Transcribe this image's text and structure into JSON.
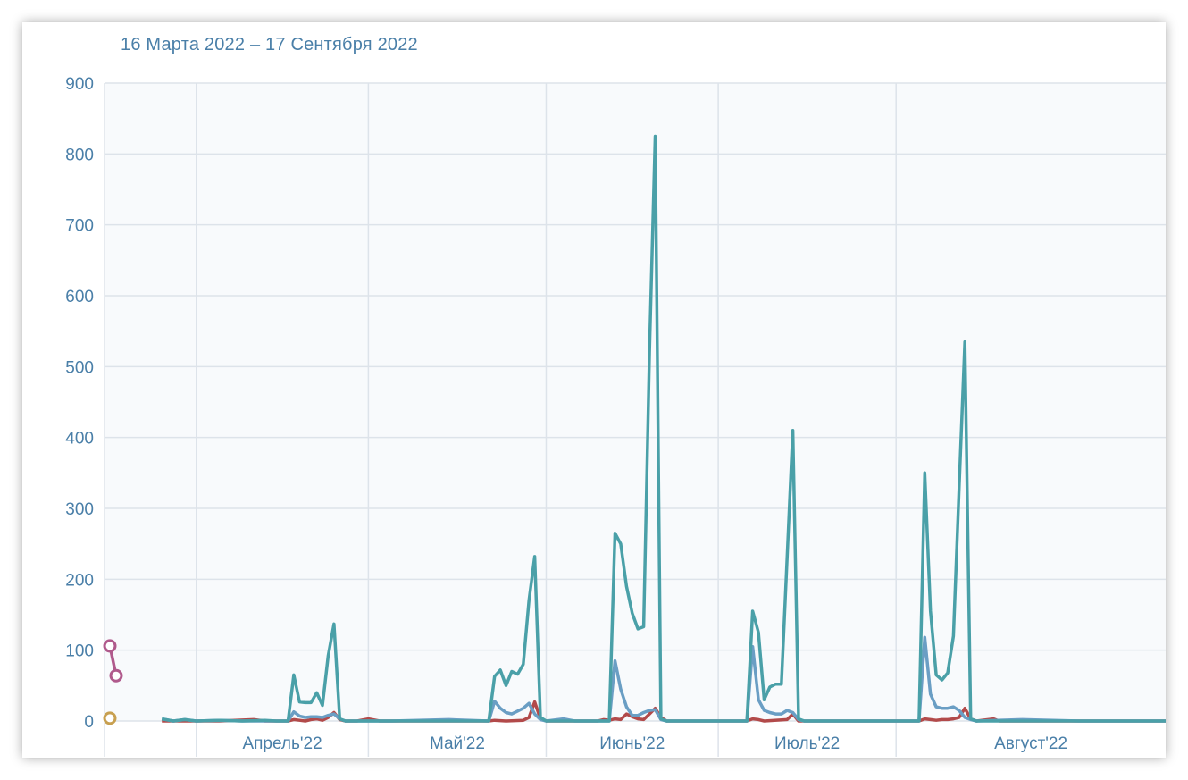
{
  "header": {
    "date_range": "16 Марта 2022 – 17 Сентября 2022"
  },
  "chart_data": {
    "type": "line",
    "title": "",
    "xlabel": "",
    "ylabel": "",
    "ylim": [
      0,
      900
    ],
    "y_ticks": [
      0,
      100,
      200,
      300,
      400,
      500,
      600,
      700,
      800,
      900
    ],
    "x_tick_labels": [
      "Апрель'22",
      "Май'22",
      "Июнь'22",
      "Июль'22",
      "Август'22"
    ],
    "x_range_days": [
      0,
      185
    ],
    "month_starts_day": [
      16,
      46,
      77,
      107,
      138
    ],
    "grid": true,
    "legend": "none",
    "series": [
      {
        "color": "#4aa0a8",
        "points": [
          [
            10,
            3
          ],
          [
            12,
            0
          ],
          [
            14,
            2
          ],
          [
            16,
            0
          ],
          [
            20,
            1
          ],
          [
            24,
            0
          ],
          [
            28,
            1
          ],
          [
            30,
            0
          ],
          [
            32,
            0
          ],
          [
            33,
            65
          ],
          [
            34,
            27
          ],
          [
            35,
            26
          ],
          [
            36,
            26
          ],
          [
            37,
            40
          ],
          [
            38,
            22
          ],
          [
            39,
            92
          ],
          [
            40,
            137
          ],
          [
            41,
            3
          ],
          [
            42,
            0
          ],
          [
            46,
            0
          ],
          [
            60,
            0
          ],
          [
            67,
            0
          ],
          [
            68,
            63
          ],
          [
            69,
            72
          ],
          [
            70,
            50
          ],
          [
            71,
            70
          ],
          [
            72,
            66
          ],
          [
            73,
            80
          ],
          [
            74,
            170
          ],
          [
            75,
            232
          ],
          [
            76,
            5
          ],
          [
            77,
            0
          ],
          [
            82,
            0
          ],
          [
            86,
            0
          ],
          [
            88,
            0
          ],
          [
            89,
            265
          ],
          [
            90,
            250
          ],
          [
            91,
            190
          ],
          [
            92,
            152
          ],
          [
            93,
            130
          ],
          [
            94,
            133
          ],
          [
            95,
            520
          ],
          [
            96,
            825
          ],
          [
            97,
            3
          ],
          [
            98,
            0
          ],
          [
            105,
            0
          ],
          [
            112,
            0
          ],
          [
            113,
            155
          ],
          [
            114,
            125
          ],
          [
            115,
            30
          ],
          [
            116,
            48
          ],
          [
            117,
            52
          ],
          [
            118,
            52
          ],
          [
            119,
            230
          ],
          [
            120,
            410
          ],
          [
            121,
            3
          ],
          [
            122,
            0
          ],
          [
            130,
            0
          ],
          [
            138,
            0
          ],
          [
            142,
            0
          ],
          [
            143,
            350
          ],
          [
            144,
            155
          ],
          [
            145,
            65
          ],
          [
            146,
            58
          ],
          [
            147,
            68
          ],
          [
            148,
            120
          ],
          [
            149,
            330
          ],
          [
            150,
            535
          ],
          [
            151,
            3
          ],
          [
            152,
            0
          ],
          [
            170,
            0
          ],
          [
            185,
            0
          ]
        ]
      },
      {
        "color": "#6a9ec4",
        "points": [
          [
            10,
            3
          ],
          [
            12,
            0
          ],
          [
            14,
            2
          ],
          [
            16,
            0
          ],
          [
            20,
            1
          ],
          [
            24,
            0
          ],
          [
            32,
            0
          ],
          [
            33,
            13
          ],
          [
            34,
            7
          ],
          [
            35,
            5
          ],
          [
            36,
            6
          ],
          [
            37,
            6
          ],
          [
            38,
            5
          ],
          [
            39,
            8
          ],
          [
            40,
            10
          ],
          [
            41,
            3
          ],
          [
            42,
            0
          ],
          [
            50,
            0
          ],
          [
            60,
            2
          ],
          [
            67,
            0
          ],
          [
            68,
            28
          ],
          [
            69,
            18
          ],
          [
            70,
            12
          ],
          [
            71,
            10
          ],
          [
            72,
            14
          ],
          [
            73,
            18
          ],
          [
            74,
            25
          ],
          [
            75,
            10
          ],
          [
            76,
            2
          ],
          [
            77,
            0
          ],
          [
            80,
            3
          ],
          [
            82,
            0
          ],
          [
            88,
            0
          ],
          [
            89,
            85
          ],
          [
            90,
            45
          ],
          [
            91,
            20
          ],
          [
            92,
            8
          ],
          [
            93,
            8
          ],
          [
            94,
            12
          ],
          [
            95,
            15
          ],
          [
            96,
            16
          ],
          [
            97,
            2
          ],
          [
            98,
            0
          ],
          [
            112,
            0
          ],
          [
            113,
            105
          ],
          [
            114,
            30
          ],
          [
            115,
            15
          ],
          [
            116,
            12
          ],
          [
            117,
            10
          ],
          [
            118,
            10
          ],
          [
            119,
            15
          ],
          [
            120,
            12
          ],
          [
            121,
            2
          ],
          [
            122,
            0
          ],
          [
            138,
            0
          ],
          [
            142,
            0
          ],
          [
            143,
            118
          ],
          [
            144,
            38
          ],
          [
            145,
            20
          ],
          [
            146,
            18
          ],
          [
            147,
            18
          ],
          [
            148,
            20
          ],
          [
            149,
            15
          ],
          [
            150,
            5
          ],
          [
            151,
            2
          ],
          [
            152,
            0
          ],
          [
            160,
            2
          ],
          [
            170,
            0
          ],
          [
            185,
            0
          ]
        ]
      },
      {
        "color": "#b24a4a",
        "points": [
          [
            10,
            0
          ],
          [
            20,
            0
          ],
          [
            26,
            2
          ],
          [
            28,
            0
          ],
          [
            32,
            0
          ],
          [
            33,
            2
          ],
          [
            34,
            1
          ],
          [
            35,
            0
          ],
          [
            36,
            2
          ],
          [
            37,
            3
          ],
          [
            38,
            1
          ],
          [
            39,
            5
          ],
          [
            40,
            12
          ],
          [
            41,
            2
          ],
          [
            42,
            0
          ],
          [
            44,
            0
          ],
          [
            46,
            3
          ],
          [
            48,
            0
          ],
          [
            67,
            0
          ],
          [
            68,
            1
          ],
          [
            70,
            0
          ],
          [
            73,
            1
          ],
          [
            74,
            5
          ],
          [
            75,
            27
          ],
          [
            76,
            3
          ],
          [
            77,
            0
          ],
          [
            80,
            0
          ],
          [
            86,
            0
          ],
          [
            87,
            2
          ],
          [
            88,
            1
          ],
          [
            89,
            3
          ],
          [
            90,
            2
          ],
          [
            91,
            10
          ],
          [
            92,
            6
          ],
          [
            93,
            3
          ],
          [
            94,
            2
          ],
          [
            95,
            10
          ],
          [
            96,
            18
          ],
          [
            97,
            5
          ],
          [
            98,
            0
          ],
          [
            112,
            0
          ],
          [
            113,
            3
          ],
          [
            114,
            2
          ],
          [
            115,
            0
          ],
          [
            119,
            2
          ],
          [
            120,
            10
          ],
          [
            121,
            0
          ],
          [
            138,
            0
          ],
          [
            142,
            0
          ],
          [
            143,
            3
          ],
          [
            144,
            2
          ],
          [
            145,
            1
          ],
          [
            146,
            2
          ],
          [
            147,
            2
          ],
          [
            148,
            3
          ],
          [
            149,
            5
          ],
          [
            150,
            18
          ],
          [
            151,
            3
          ],
          [
            152,
            0
          ],
          [
            155,
            3
          ],
          [
            156,
            0
          ],
          [
            185,
            0
          ]
        ]
      }
    ],
    "side_markers": [
      {
        "color": "#b05a8c",
        "points": [
          [
            106
          ],
          [
            64
          ]
        ]
      },
      {
        "color": "#c8a050",
        "points": [
          [
            4
          ]
        ]
      }
    ]
  }
}
